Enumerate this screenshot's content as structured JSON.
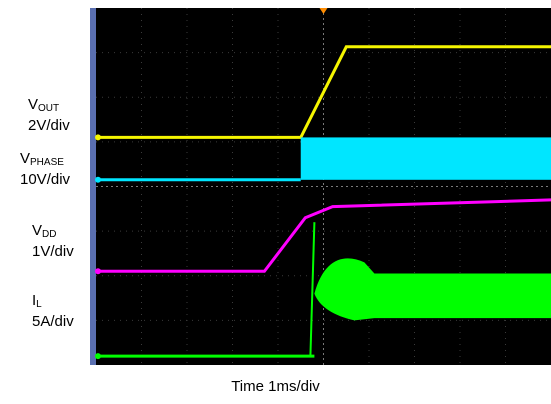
{
  "chart_data": {
    "type": "line",
    "xlabel": "Time 1ms/div",
    "grid": true,
    "x_divisions": 10,
    "y_divisions": 8,
    "series": [
      {
        "name_main": "V",
        "name_sub": "OUT",
        "scale": "2V/div",
        "color": "#f5f500",
        "baseline_div": 5.1,
        "points": [
          [
            0,
            0
          ],
          [
            4.5,
            0
          ],
          [
            5.5,
            2.03
          ],
          [
            10,
            2.03
          ]
        ]
      },
      {
        "name_main": "V",
        "name_sub": "PHASE",
        "scale": "10V/div",
        "color": "#00e6ff",
        "baseline_div": 4.15,
        "switching": {
          "start": 4.5,
          "end": 10,
          "amplitude_div": 0.95
        }
      },
      {
        "name_main": "V",
        "name_sub": "DD",
        "scale": "1V/div",
        "color": "#ff00ff",
        "baseline_div": 2.1,
        "points": [
          [
            0,
            0
          ],
          [
            3.7,
            0
          ],
          [
            4.6,
            1.2
          ],
          [
            5.2,
            1.45
          ],
          [
            10,
            1.6
          ]
        ]
      },
      {
        "name_main": "I",
        "name_sub": "L",
        "scale": "5A/div",
        "color": "#00ff00",
        "baseline_div": 0.2,
        "spike_at": 4.8,
        "envelope": {
          "start": 4.8,
          "end": 10,
          "low": 1.05,
          "high": 2.05
        }
      }
    ]
  }
}
